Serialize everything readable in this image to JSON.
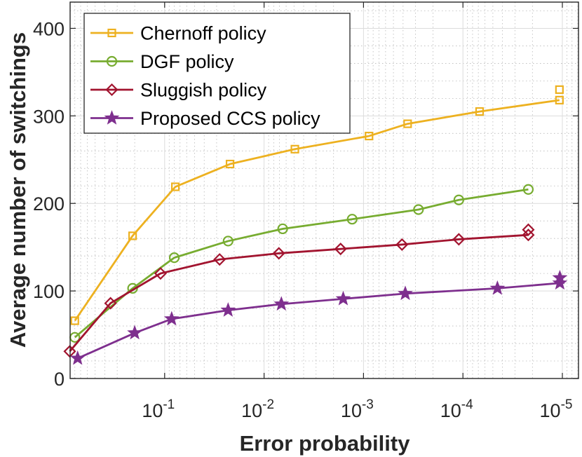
{
  "chart_data": {
    "type": "line",
    "xlabel": "Error probability",
    "ylabel": "Average number of switchings",
    "x_scale": "log-reversed",
    "xlim": [
      1,
      1e-05
    ],
    "ylim": [
      0,
      430
    ],
    "yticks": [
      0,
      100,
      200,
      300,
      400
    ],
    "xticks": [
      {
        "base": "10",
        "exp": "-1",
        "value": 0.1
      },
      {
        "base": "10",
        "exp": "-2",
        "value": 0.01
      },
      {
        "base": "10",
        "exp": "-3",
        "value": 0.001
      },
      {
        "base": "10",
        "exp": "-4",
        "value": 0.0001
      },
      {
        "base": "10",
        "exp": "-5",
        "value": 1e-05
      }
    ],
    "grid": true,
    "legend_position": "top-left",
    "series": [
      {
        "name": "Chernoff policy",
        "color": "#EDB120",
        "marker": "square",
        "x": [
          0.8,
          0.21,
          0.078,
          0.022,
          0.0049,
          0.00088,
          0.00036,
          6.8e-05,
          1.07e-05
        ],
        "y": [
          66,
          163,
          219,
          245,
          262,
          277,
          291,
          305,
          318
        ],
        "extra_points": [
          {
            "x": 1.07e-05,
            "y": 330
          }
        ]
      },
      {
        "name": "DGF policy",
        "color": "#77AC30",
        "marker": "circle",
        "x": [
          0.8,
          0.21,
          0.08,
          0.023,
          0.0065,
          0.0013,
          0.00028,
          0.00011,
          2.2e-05
        ],
        "y": [
          47,
          103,
          138,
          157,
          171,
          182,
          193,
          204,
          216
        ]
      },
      {
        "name": "Sluggish policy",
        "color": "#A2142F",
        "marker": "diamond",
        "x": [
          0.9,
          0.35,
          0.11,
          0.028,
          0.0071,
          0.0017,
          0.00041,
          0.00011,
          2.2e-05
        ],
        "y": [
          31,
          86,
          120,
          136,
          143,
          148,
          153,
          159,
          164
        ],
        "extra_points": [
          {
            "x": 2.2e-05,
            "y": 170
          }
        ]
      },
      {
        "name": "Proposed CCS policy",
        "color": "#7E2F8E",
        "marker": "star",
        "x": [
          0.75,
          0.2,
          0.085,
          0.023,
          0.0067,
          0.0016,
          0.00038,
          4.5e-05,
          1.06e-05
        ],
        "y": [
          23,
          52,
          68,
          78,
          85,
          91,
          97,
          103,
          109
        ],
        "extra_points": [
          {
            "x": 1.06e-05,
            "y": 115
          }
        ]
      }
    ]
  }
}
